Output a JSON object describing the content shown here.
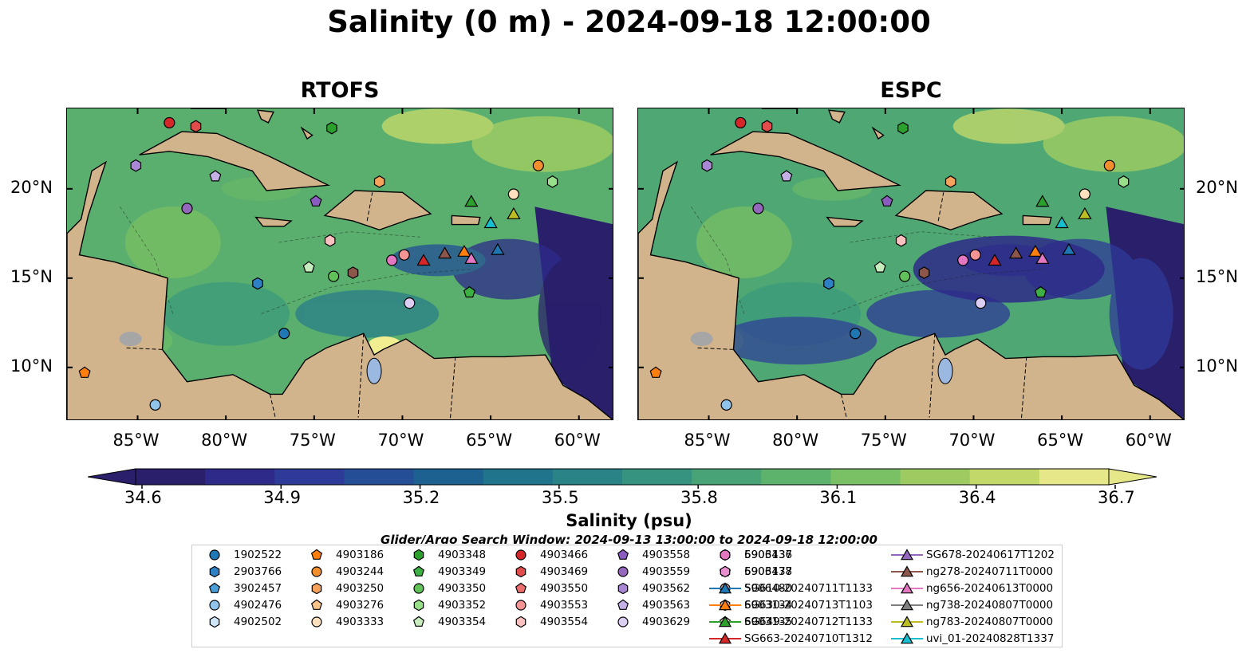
{
  "title": "Salinity (0 m) - 2024-09-18 12:00:00",
  "panels": [
    {
      "title": "RTOFS"
    },
    {
      "title": "ESPC"
    }
  ],
  "axes": {
    "x_labels": [
      "85°W",
      "80°W",
      "75°W",
      "70°W",
      "65°W",
      "60°W"
    ],
    "y_labels": [
      "20°N",
      "15°N",
      "10°N"
    ]
  },
  "colorbar": {
    "label": "Salinity (psu)",
    "ticks": [
      "34.6",
      "34.9",
      "35.2",
      "35.5",
      "35.8",
      "36.1",
      "36.4",
      "36.7"
    ],
    "colors": [
      "#2a1f6b",
      "#2d2a8a",
      "#2e3a98",
      "#244e96",
      "#1d6190",
      "#20748c",
      "#2a8487",
      "#36937f",
      "#48a376",
      "#5db26c",
      "#7ac064",
      "#9dcb62",
      "#c2d869",
      "#e6e788"
    ]
  },
  "search_window": "Glider/Argo Search Window: 2024-09-13 13:00:00 to 2024-09-18 12:00:00",
  "chart_data": {
    "type": "heatmap",
    "title": "Salinity (0 m) - 2024-09-18 12:00:00",
    "variable": "Salinity (psu)",
    "clim": [
      34.6,
      36.7
    ],
    "xlim": [
      -89,
      -58
    ],
    "ylim": [
      7,
      24.5
    ],
    "panels": [
      "RTOFS",
      "ESPC"
    ],
    "legend": [
      {
        "name": "1902522",
        "marker": "circle",
        "color": "#1f77b4"
      },
      {
        "name": "2903766",
        "marker": "hexagon",
        "color": "#2f7fc4"
      },
      {
        "name": "3902457",
        "marker": "pentagon",
        "color": "#4a9fd8"
      },
      {
        "name": "4902476",
        "marker": "circle",
        "color": "#90c4ea"
      },
      {
        "name": "4902502",
        "marker": "hexagon",
        "color": "#cfe6f7"
      },
      {
        "name": "4903186",
        "marker": "pentagon",
        "color": "#ff7f0e"
      },
      {
        "name": "4903244",
        "marker": "circle",
        "color": "#f28e2b"
      },
      {
        "name": "4903250",
        "marker": "hexagon",
        "color": "#f5a25d"
      },
      {
        "name": "4903276",
        "marker": "pentagon",
        "color": "#f9c58c"
      },
      {
        "name": "4903333",
        "marker": "circle",
        "color": "#fde0bd"
      },
      {
        "name": "4903348",
        "marker": "hexagon",
        "color": "#2ca02c"
      },
      {
        "name": "4903349",
        "marker": "pentagon",
        "color": "#3cb043"
      },
      {
        "name": "4903350",
        "marker": "circle",
        "color": "#62c25a"
      },
      {
        "name": "4903352",
        "marker": "hexagon",
        "color": "#98df8a"
      },
      {
        "name": "4903354",
        "marker": "pentagon",
        "color": "#c7ecbd"
      },
      {
        "name": "4903466",
        "marker": "circle",
        "color": "#d62728"
      },
      {
        "name": "4903469",
        "marker": "hexagon",
        "color": "#e04b4b"
      },
      {
        "name": "4903550",
        "marker": "pentagon",
        "color": "#ec6f6f"
      },
      {
        "name": "4903553",
        "marker": "circle",
        "color": "#f49494"
      },
      {
        "name": "4903554",
        "marker": "hexagon",
        "color": "#fbc0c0"
      },
      {
        "name": "4903558",
        "marker": "pentagon",
        "color": "#8a5cbf"
      },
      {
        "name": "4903559",
        "marker": "circle",
        "color": "#9467bd"
      },
      {
        "name": "4903562",
        "marker": "hexagon",
        "color": "#a987d4"
      },
      {
        "name": "4903563",
        "marker": "pentagon",
        "color": "#c5b0e6"
      },
      {
        "name": "4903629",
        "marker": "circle",
        "color": "#dccdf2"
      },
      {
        "name": "5906437",
        "marker": "hexagon",
        "color": "#8c564b"
      },
      {
        "name": "5906478",
        "marker": "pentagon",
        "color": "#a06d5f"
      },
      {
        "name": "5906480",
        "marker": "circle",
        "color": "#c49c94"
      },
      {
        "name": "6903134",
        "marker": "hexagon",
        "color": "#dbb0a4"
      },
      {
        "name": "6903135",
        "marker": "pentagon",
        "color": "#f3d4cc"
      },
      {
        "name": "6903136",
        "marker": "circle",
        "color": "#e377c2"
      },
      {
        "name": "6903137",
        "marker": "hexagon",
        "color": "#e98fd1"
      },
      {
        "name": "SG610-20240711T1133",
        "marker": "triangle",
        "color": "#1f77b4"
      },
      {
        "name": "SG630-20240713T1103",
        "marker": "triangle",
        "color": "#ff7f0e"
      },
      {
        "name": "SG649-20240712T1133",
        "marker": "triangle",
        "color": "#2ca02c"
      },
      {
        "name": "SG663-20240710T1312",
        "marker": "triangle",
        "color": "#d62728"
      },
      {
        "name": "SG678-20240617T1202",
        "marker": "triangle",
        "color": "#9467bd"
      },
      {
        "name": "ng278-20240711T0000",
        "marker": "triangle",
        "color": "#8c564b"
      },
      {
        "name": "ng656-20240613T0000",
        "marker": "triangle",
        "color": "#e377c2"
      },
      {
        "name": "ng738-20240807T0000",
        "marker": "triangle",
        "color": "#7f7f7f"
      },
      {
        "name": "ng783-20240807T0000",
        "marker": "triangle",
        "color": "#bcbd22"
      },
      {
        "name": "uvi_01-20240828T1337",
        "marker": "triangle",
        "color": "#17becf"
      }
    ],
    "points": [
      {
        "id": "1902522",
        "lon": -76.7,
        "lat": 11.9
      },
      {
        "id": "2903766",
        "lon": -78.2,
        "lat": 14.7
      },
      {
        "id": "4902476",
        "lon": -84.0,
        "lat": 7.9
      },
      {
        "id": "4903186",
        "lon": -88.0,
        "lat": 9.7
      },
      {
        "id": "4903244",
        "lon": -62.3,
        "lat": 21.3
      },
      {
        "id": "4903250",
        "lon": -71.3,
        "lat": 20.4
      },
      {
        "id": "4903333",
        "lon": -63.7,
        "lat": 19.7
      },
      {
        "id": "4903348",
        "lon": -74.0,
        "lat": 23.4
      },
      {
        "id": "4903349",
        "lon": -66.2,
        "lat": 14.2
      },
      {
        "id": "4903350",
        "lon": -73.9,
        "lat": 15.1
      },
      {
        "id": "4903352",
        "lon": -61.5,
        "lat": 20.4
      },
      {
        "id": "4903354",
        "lon": -75.3,
        "lat": 15.6
      },
      {
        "id": "4903466",
        "lon": -83.2,
        "lat": 23.7
      },
      {
        "id": "4903469",
        "lon": -81.7,
        "lat": 23.5
      },
      {
        "id": "4903553",
        "lon": -69.9,
        "lat": 16.3
      },
      {
        "id": "4903554",
        "lon": -74.1,
        "lat": 17.1
      },
      {
        "id": "4903558",
        "lon": -74.9,
        "lat": 19.3
      },
      {
        "id": "4903559",
        "lon": -82.2,
        "lat": 18.9
      },
      {
        "id": "4903562",
        "lon": -85.1,
        "lat": 21.3
      },
      {
        "id": "4903563",
        "lon": -80.6,
        "lat": 20.7
      },
      {
        "id": "4903629",
        "lon": -69.6,
        "lat": 13.6
      },
      {
        "id": "5906437",
        "lon": -72.8,
        "lat": 15.3
      },
      {
        "id": "6903136",
        "lon": -70.6,
        "lat": 16.0
      },
      {
        "id": "SG610-20240711T1133",
        "lon": -64.6,
        "lat": 16.6
      },
      {
        "id": "SG630-20240713T1103",
        "lon": -66.5,
        "lat": 16.5
      },
      {
        "id": "SG649-20240712T1133",
        "lon": -66.1,
        "lat": 19.3
      },
      {
        "id": "SG663-20240710T1312",
        "lon": -68.8,
        "lat": 16.0
      },
      {
        "id": "ng278-20240711T0000",
        "lon": -67.6,
        "lat": 16.4
      },
      {
        "id": "ng656-20240613T0000",
        "lon": -66.1,
        "lat": 16.1
      },
      {
        "id": "ng783-20240807T0000",
        "lon": -63.7,
        "lat": 18.6
      },
      {
        "id": "uvi_01-20240828T1337",
        "lon": -65.0,
        "lat": 18.1
      }
    ]
  }
}
